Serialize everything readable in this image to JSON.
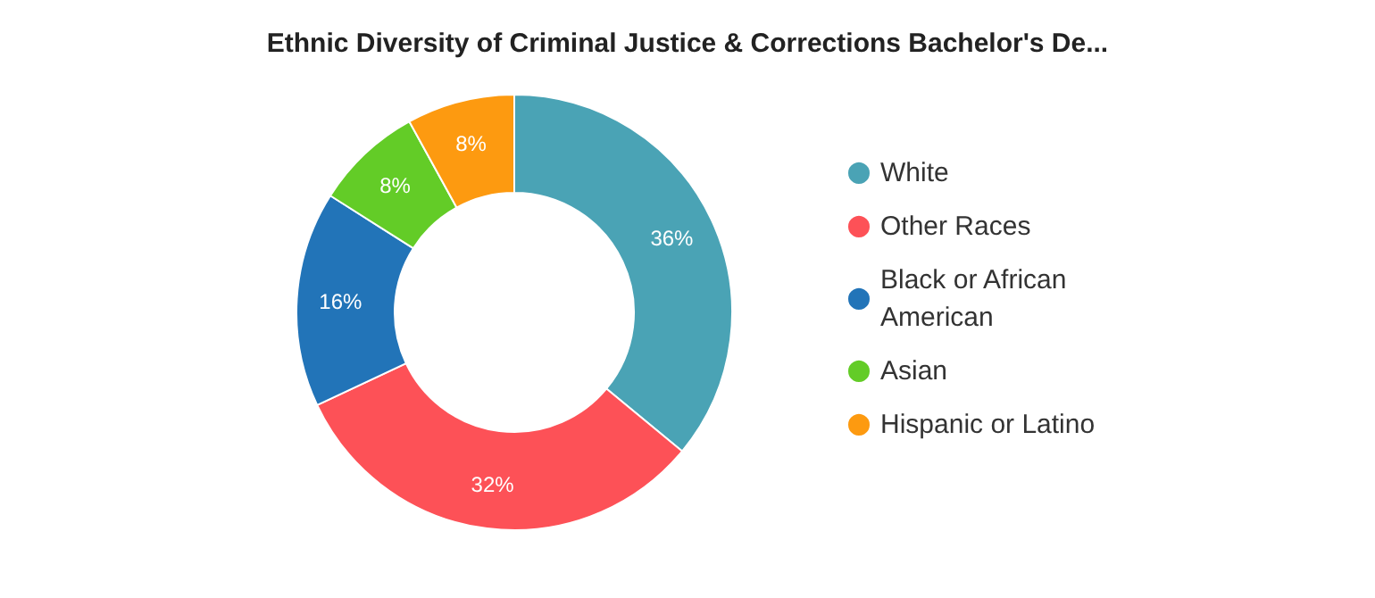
{
  "chart_data": {
    "type": "donut",
    "title": "Ethnic Diversity of Criminal Justice & Corrections Bachelor's De...",
    "categories": [
      "White",
      "Other Races",
      "Black or African American",
      "Asian",
      "Hispanic or Latino"
    ],
    "values": [
      36,
      32,
      16,
      8,
      8
    ],
    "colors": [
      "#4aa3b5",
      "#fd5157",
      "#2274b8",
      "#63cc27",
      "#fd9a10"
    ],
    "value_labels": [
      "36%",
      "32%",
      "16%",
      "8%",
      "8%"
    ],
    "legend": "right"
  }
}
